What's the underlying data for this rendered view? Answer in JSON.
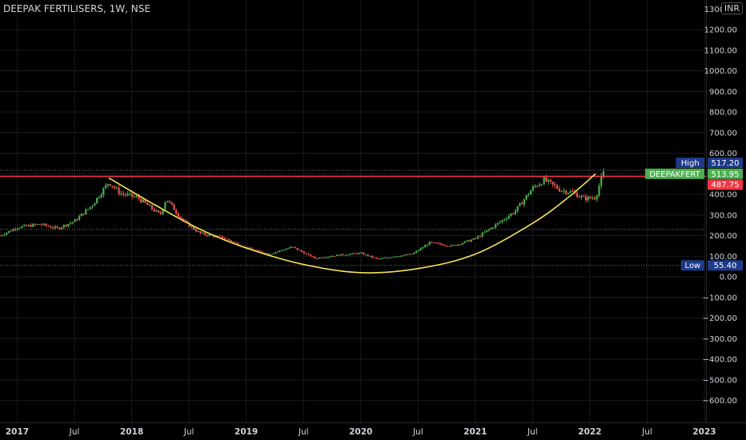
{
  "header": {
    "title": "DEEPAK FERTILISERS, 1W, NSE",
    "currency": "INR"
  },
  "colors": {
    "background": "#000000",
    "up": "#26a69a",
    "down": "#ef5350",
    "up_candle": "#4caf50",
    "resistance_line": "#f23645",
    "cup_curve": "#f7e25b",
    "label_blue": "#1e3a8a",
    "label_green": "#4caf50",
    "label_red": "#f23645"
  },
  "chart_data": {
    "type": "candlestick",
    "symbol": "DEEPAKFERT",
    "interval": "1W",
    "exchange": "NSE",
    "ylim": [
      -650,
      1350
    ],
    "y_ticks": [
      1200,
      1100,
      1000,
      900,
      800,
      700,
      600,
      500,
      400,
      300,
      200,
      100,
      0,
      -100,
      -200,
      -300,
      -400,
      -500,
      -600
    ],
    "y_tick_labels": [
      "1200.00",
      "1100.00",
      "1000.00",
      "900.00",
      "800.00",
      "700.00",
      "600.00",
      "500.00",
      "400.00",
      "300.00",
      "200.00",
      "100.00",
      "0.00",
      "−100.00",
      "−200.00",
      "−300.00",
      "−400.00",
      "−500.00",
      "−600.00"
    ],
    "y_top_partial_label": "1300.00",
    "x_range": [
      "2016.85",
      "2023.0"
    ],
    "x_ticks": [
      {
        "t": 2017.0,
        "label": "2017"
      },
      {
        "t": 2017.5,
        "label": "Jul"
      },
      {
        "t": 2018.0,
        "label": "2018"
      },
      {
        "t": 2018.5,
        "label": "Jul"
      },
      {
        "t": 2019.0,
        "label": "2019"
      },
      {
        "t": 2019.5,
        "label": "Jul"
      },
      {
        "t": 2020.0,
        "label": "2020"
      },
      {
        "t": 2020.5,
        "label": "Jul"
      },
      {
        "t": 2021.0,
        "label": "2021"
      },
      {
        "t": 2021.5,
        "label": "Jul"
      },
      {
        "t": 2022.0,
        "label": "2022"
      },
      {
        "t": 2022.5,
        "label": "Jul"
      },
      {
        "t": 2023.0,
        "label": "2023"
      }
    ],
    "price_path": [
      {
        "t": 2016.85,
        "p": 200
      },
      {
        "t": 2017.0,
        "p": 240
      },
      {
        "t": 2017.2,
        "p": 255
      },
      {
        "t": 2017.35,
        "p": 235
      },
      {
        "t": 2017.5,
        "p": 270
      },
      {
        "t": 2017.65,
        "p": 345
      },
      {
        "t": 2017.8,
        "p": 460
      },
      {
        "t": 2017.9,
        "p": 405
      },
      {
        "t": 2018.05,
        "p": 385
      },
      {
        "t": 2018.25,
        "p": 300
      },
      {
        "t": 2018.3,
        "p": 380
      },
      {
        "t": 2018.45,
        "p": 270
      },
      {
        "t": 2018.6,
        "p": 210
      },
      {
        "t": 2018.8,
        "p": 190
      },
      {
        "t": 2019.0,
        "p": 140
      },
      {
        "t": 2019.2,
        "p": 110
      },
      {
        "t": 2019.4,
        "p": 145
      },
      {
        "t": 2019.6,
        "p": 90
      },
      {
        "t": 2019.8,
        "p": 105
      },
      {
        "t": 2020.0,
        "p": 115
      },
      {
        "t": 2020.15,
        "p": 85
      },
      {
        "t": 2020.3,
        "p": 100
      },
      {
        "t": 2020.45,
        "p": 110
      },
      {
        "t": 2020.6,
        "p": 165
      },
      {
        "t": 2020.8,
        "p": 150
      },
      {
        "t": 2021.0,
        "p": 185
      },
      {
        "t": 2021.2,
        "p": 260
      },
      {
        "t": 2021.35,
        "p": 320
      },
      {
        "t": 2021.5,
        "p": 430
      },
      {
        "t": 2021.6,
        "p": 470
      },
      {
        "t": 2021.75,
        "p": 420
      },
      {
        "t": 2021.85,
        "p": 410
      },
      {
        "t": 2021.95,
        "p": 380
      },
      {
        "t": 2022.05,
        "p": 385
      },
      {
        "t": 2022.12,
        "p": 513.95
      }
    ],
    "cup_curve": [
      {
        "t": 2017.8,
        "p": 480
      },
      {
        "t": 2018.2,
        "p": 350
      },
      {
        "t": 2018.6,
        "p": 230
      },
      {
        "t": 2019.0,
        "p": 140
      },
      {
        "t": 2019.5,
        "p": 60
      },
      {
        "t": 2020.0,
        "p": 20
      },
      {
        "t": 2020.5,
        "p": 40
      },
      {
        "t": 2021.0,
        "p": 110
      },
      {
        "t": 2021.5,
        "p": 260
      },
      {
        "t": 2021.8,
        "p": 380
      },
      {
        "t": 2022.05,
        "p": 500
      }
    ],
    "lines": {
      "resistance": 487.75,
      "high": 517.2,
      "low": 55.4,
      "mid_dotted": 230
    },
    "price_tags": {
      "high_title": "High",
      "high_value": "517.20",
      "current_title": "DEEPAKFERT",
      "current_value": "513.95",
      "resistance_value": "487.75",
      "low_title": "Low",
      "low_value": "55.40"
    }
  }
}
